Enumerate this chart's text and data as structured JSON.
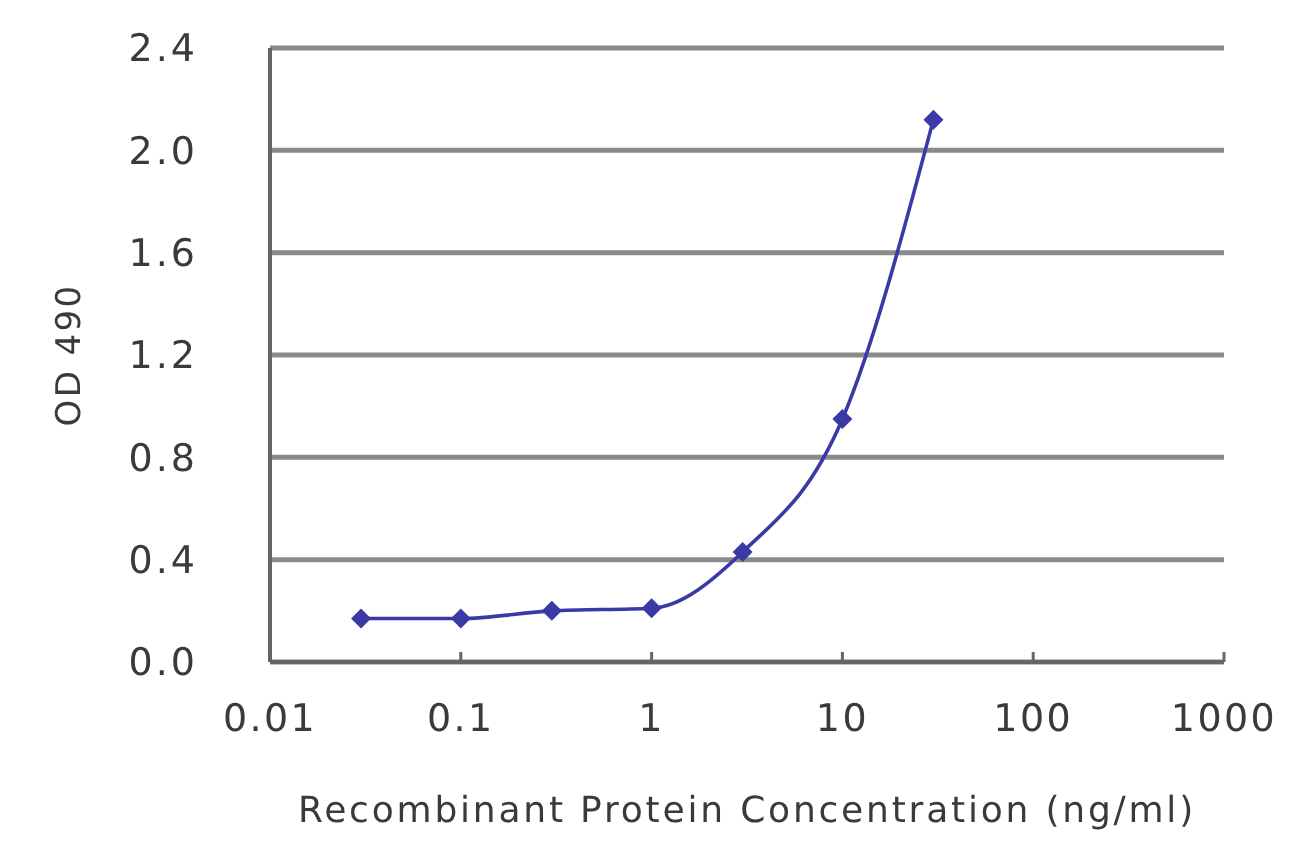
{
  "chart_data": {
    "type": "line",
    "xlabel": "Recombinant Protein Concentration (ng/ml)",
    "ylabel": "OD 490",
    "x": [
      0.03,
      0.1,
      0.3,
      1,
      3,
      10,
      30
    ],
    "series": [
      {
        "color": "#3a3aa6",
        "values": [
          0.17,
          0.17,
          0.2,
          0.21,
          0.43,
          0.95,
          2.12
        ]
      }
    ],
    "log": "x",
    "xlim": [
      0.01,
      1000
    ],
    "xticks": [
      0.01,
      0.1,
      1,
      10,
      100,
      1000
    ],
    "ylim": [
      0,
      2.4
    ],
    "yticks": [
      {
        "value": 0,
        "label": "0.0"
      },
      0.4,
      0.8,
      1.2,
      1.6,
      {
        "value": 2,
        "label": "2.0"
      },
      2.4
    ],
    "grid": "y",
    "marker": "diamond",
    "line_style": "solid"
  }
}
